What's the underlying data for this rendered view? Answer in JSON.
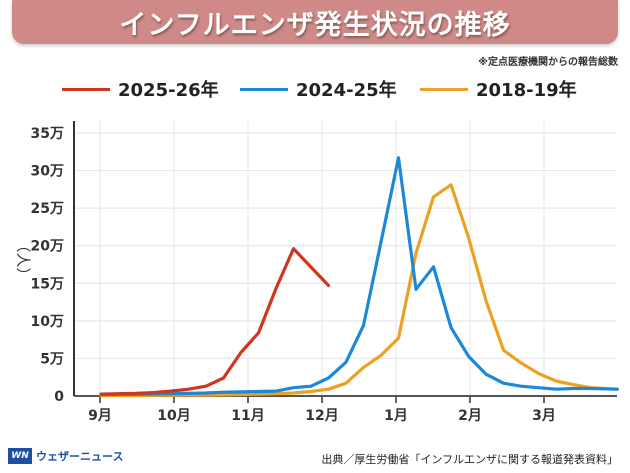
{
  "header": {
    "title": "インフルエンザ発生状況の推移",
    "note": "※定点医療機関からの報告総数"
  },
  "footer": {
    "logo_mark": "WN",
    "logo_text": "ウェザーニュース",
    "source": "出典／厚生労働省「インフルエンザに関する報道発表資料」"
  },
  "chart_data": {
    "type": "line",
    "title": "インフルエンザ発生状況の推移",
    "xlabel": "",
    "ylabel": "（人）",
    "ylim": [
      0,
      350000
    ],
    "yticks": [
      0,
      50000,
      100000,
      150000,
      200000,
      250000,
      300000,
      350000
    ],
    "ytick_labels": [
      "0",
      "5万",
      "10万",
      "15万",
      "20万",
      "25万",
      "30万",
      "35万"
    ],
    "x_month_labels": [
      "9月",
      "10月",
      "11月",
      "12月",
      "1月",
      "2月",
      "3月"
    ],
    "x_unit": "weeks since start of September",
    "xlim": [
      0,
      29.5
    ],
    "grid": true,
    "legend_position": "top",
    "series": [
      {
        "name": "2025-26年",
        "color": "#d0351e",
        "x": [
          0,
          1,
          2,
          3,
          4,
          5,
          6,
          7,
          8,
          9,
          10,
          11,
          12,
          13
        ],
        "values": [
          2500,
          3000,
          3500,
          4500,
          6500,
          9000,
          13000,
          24000,
          58000,
          84000,
          143000,
          196000,
          null,
          147000
        ]
      },
      {
        "name": "2024-25年",
        "color": "#1e88d8",
        "x": [
          0,
          1,
          2,
          3,
          4,
          5,
          6,
          7,
          8,
          9,
          10,
          11,
          12,
          13,
          14,
          15,
          16,
          17,
          18,
          19,
          20,
          21,
          22,
          23,
          24,
          25,
          26,
          27,
          28,
          29.5
        ],
        "values": [
          2000,
          2200,
          2400,
          2600,
          3000,
          3500,
          4000,
          5000,
          5500,
          6000,
          6500,
          11000,
          13000,
          24000,
          45000,
          94000,
          205000,
          317000,
          142000,
          172000,
          91000,
          53000,
          29000,
          17000,
          13000,
          11000,
          9000,
          10000,
          10000,
          9000
        ]
      },
      {
        "name": "2018-19年",
        "color": "#eca123",
        "x": [
          0,
          1,
          2,
          3,
          4,
          5,
          6,
          7,
          8,
          9,
          10,
          11,
          12,
          13,
          14,
          15,
          16,
          17,
          18,
          19,
          20,
          21,
          22,
          23,
          24,
          25,
          26,
          27,
          28,
          29.5
        ],
        "values": [
          500,
          600,
          700,
          800,
          900,
          1000,
          1200,
          1500,
          2000,
          2500,
          3000,
          4000,
          6000,
          9000,
          17000,
          38000,
          54000,
          77000,
          190000,
          265000,
          281000,
          211000,
          127000,
          61000,
          44000,
          30000,
          20000,
          15000,
          11000,
          9000
        ]
      }
    ]
  }
}
